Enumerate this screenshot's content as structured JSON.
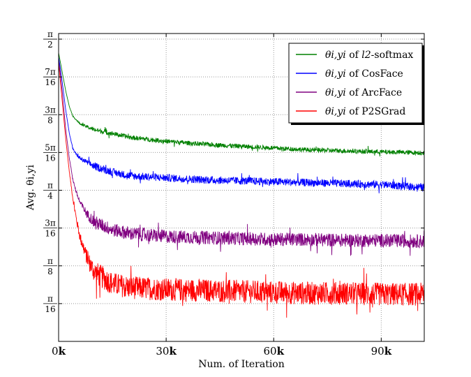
{
  "chart_data": {
    "type": "line",
    "title": "",
    "xlabel": "Num. of Iteration",
    "ylabel": "Avg. θi,yi",
    "xlim": [
      0,
      102000
    ],
    "ylim": [
      0,
      1.6
    ],
    "grid": true,
    "legend_position": "top-right",
    "x_ticks": [
      {
        "value": 0,
        "num": "0",
        "unit": "k"
      },
      {
        "value": 30000,
        "num": "30",
        "unit": "k"
      },
      {
        "value": 60000,
        "num": "60",
        "unit": "k"
      },
      {
        "value": 90000,
        "num": "90",
        "unit": "k"
      }
    ],
    "y_ticks": [
      {
        "value": 0.19635,
        "numerator": "π",
        "denominator": "16"
      },
      {
        "value": 0.3927,
        "numerator": "π",
        "denominator": "8"
      },
      {
        "value": 0.58905,
        "numerator": "3π",
        "denominator": "16"
      },
      {
        "value": 0.7854,
        "numerator": "π",
        "denominator": "4"
      },
      {
        "value": 0.98175,
        "numerator": "5π",
        "denominator": "16"
      },
      {
        "value": 1.1781,
        "numerator": "3π",
        "denominator": "8"
      },
      {
        "value": 1.37445,
        "numerator": "7π",
        "denominator": "16"
      },
      {
        "value": 1.5708,
        "numerator": "π",
        "denominator": "2"
      }
    ],
    "series": [
      {
        "name_math": "θi,yi",
        "name_text": " of ",
        "name_emph": "l2",
        "name_rest": "-softmax",
        "color": "#008000",
        "noise": 0.012,
        "x": [
          0,
          1000,
          2000,
          3000,
          4000,
          5000,
          6000,
          8000,
          10000,
          15000,
          20000,
          30000,
          40000,
          50000,
          60000,
          70000,
          80000,
          90000,
          102000
        ],
        "y": [
          1.5,
          1.4,
          1.3,
          1.22,
          1.17,
          1.15,
          1.13,
          1.115,
          1.1,
          1.08,
          1.06,
          1.04,
          1.025,
          1.015,
          1.005,
          0.995,
          0.99,
          0.985,
          0.98
        ]
      },
      {
        "name_math": "θi,yi",
        "name_text": " of CosFace",
        "name_emph": "",
        "name_rest": "",
        "color": "#0000ff",
        "noise": 0.02,
        "x": [
          0,
          1000,
          2000,
          3000,
          4000,
          5000,
          6000,
          8000,
          10000,
          15000,
          20000,
          30000,
          40000,
          50000,
          60000,
          70000,
          80000,
          90000,
          102000
        ],
        "y": [
          1.48,
          1.35,
          1.2,
          1.08,
          1.0,
          0.97,
          0.95,
          0.93,
          0.91,
          0.88,
          0.86,
          0.85,
          0.84,
          0.835,
          0.83,
          0.825,
          0.82,
          0.815,
          0.8
        ]
      },
      {
        "name_math": "θi,yi",
        "name_text": " of ArcFace",
        "name_emph": "",
        "name_rest": "",
        "color": "#800080",
        "noise": 0.035,
        "x": [
          0,
          1000,
          2000,
          3000,
          4000,
          5000,
          6000,
          8000,
          10000,
          15000,
          20000,
          30000,
          40000,
          50000,
          60000,
          70000,
          80000,
          90000,
          102000
        ],
        "y": [
          1.47,
          1.3,
          1.1,
          0.95,
          0.84,
          0.77,
          0.72,
          0.66,
          0.62,
          0.58,
          0.56,
          0.545,
          0.54,
          0.535,
          0.53,
          0.53,
          0.525,
          0.525,
          0.52
        ]
      },
      {
        "name_math": "θi,yi",
        "name_text": " of P2SGrad",
        "name_emph": "",
        "name_rest": "",
        "color": "#ff0000",
        "noise": 0.06,
        "x": [
          0,
          1000,
          2000,
          3000,
          4000,
          5000,
          6000,
          8000,
          10000,
          15000,
          20000,
          30000,
          40000,
          50000,
          60000,
          70000,
          80000,
          90000,
          102000
        ],
        "y": [
          1.45,
          1.25,
          1.05,
          0.88,
          0.74,
          0.63,
          0.54,
          0.43,
          0.36,
          0.3,
          0.28,
          0.27,
          0.265,
          0.26,
          0.255,
          0.25,
          0.25,
          0.245,
          0.245
        ]
      }
    ]
  }
}
